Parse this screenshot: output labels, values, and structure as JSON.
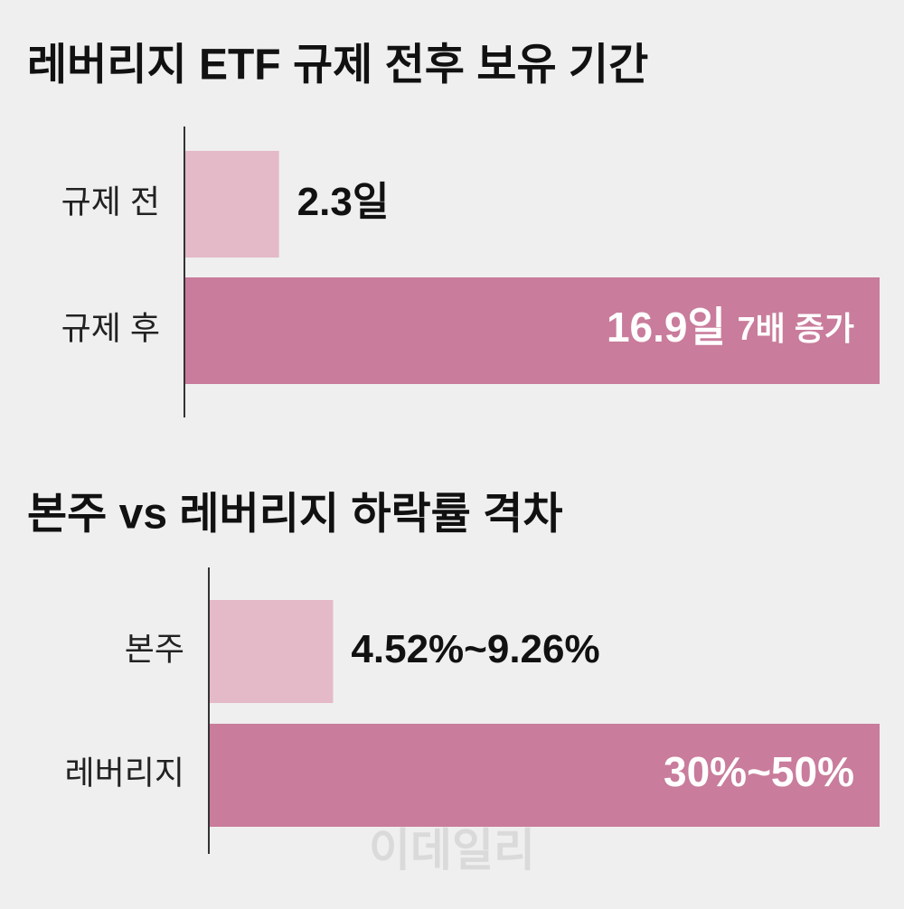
{
  "chart_data": [
    {
      "type": "bar",
      "title": "레버리지 ETF 규제 전후 보유 기간",
      "categories": [
        "규제 전",
        "규제 후"
      ],
      "values": [
        2.3,
        16.9
      ],
      "value_labels": [
        "2.3일",
        "16.9일"
      ],
      "annotation": "7배 증가",
      "colors": [
        "#e4b9c8",
        "#c97c9b"
      ]
    },
    {
      "type": "bar",
      "title": "본주 vs 레버리지 하락률 격차",
      "categories": [
        "본주",
        "레버리지"
      ],
      "values": [
        9.26,
        50
      ],
      "value_labels": [
        "4.52%~9.26%",
        "30%~50%"
      ],
      "colors": [
        "#e4b9c8",
        "#c97c9b"
      ],
      "watermark": "이데일리"
    }
  ]
}
